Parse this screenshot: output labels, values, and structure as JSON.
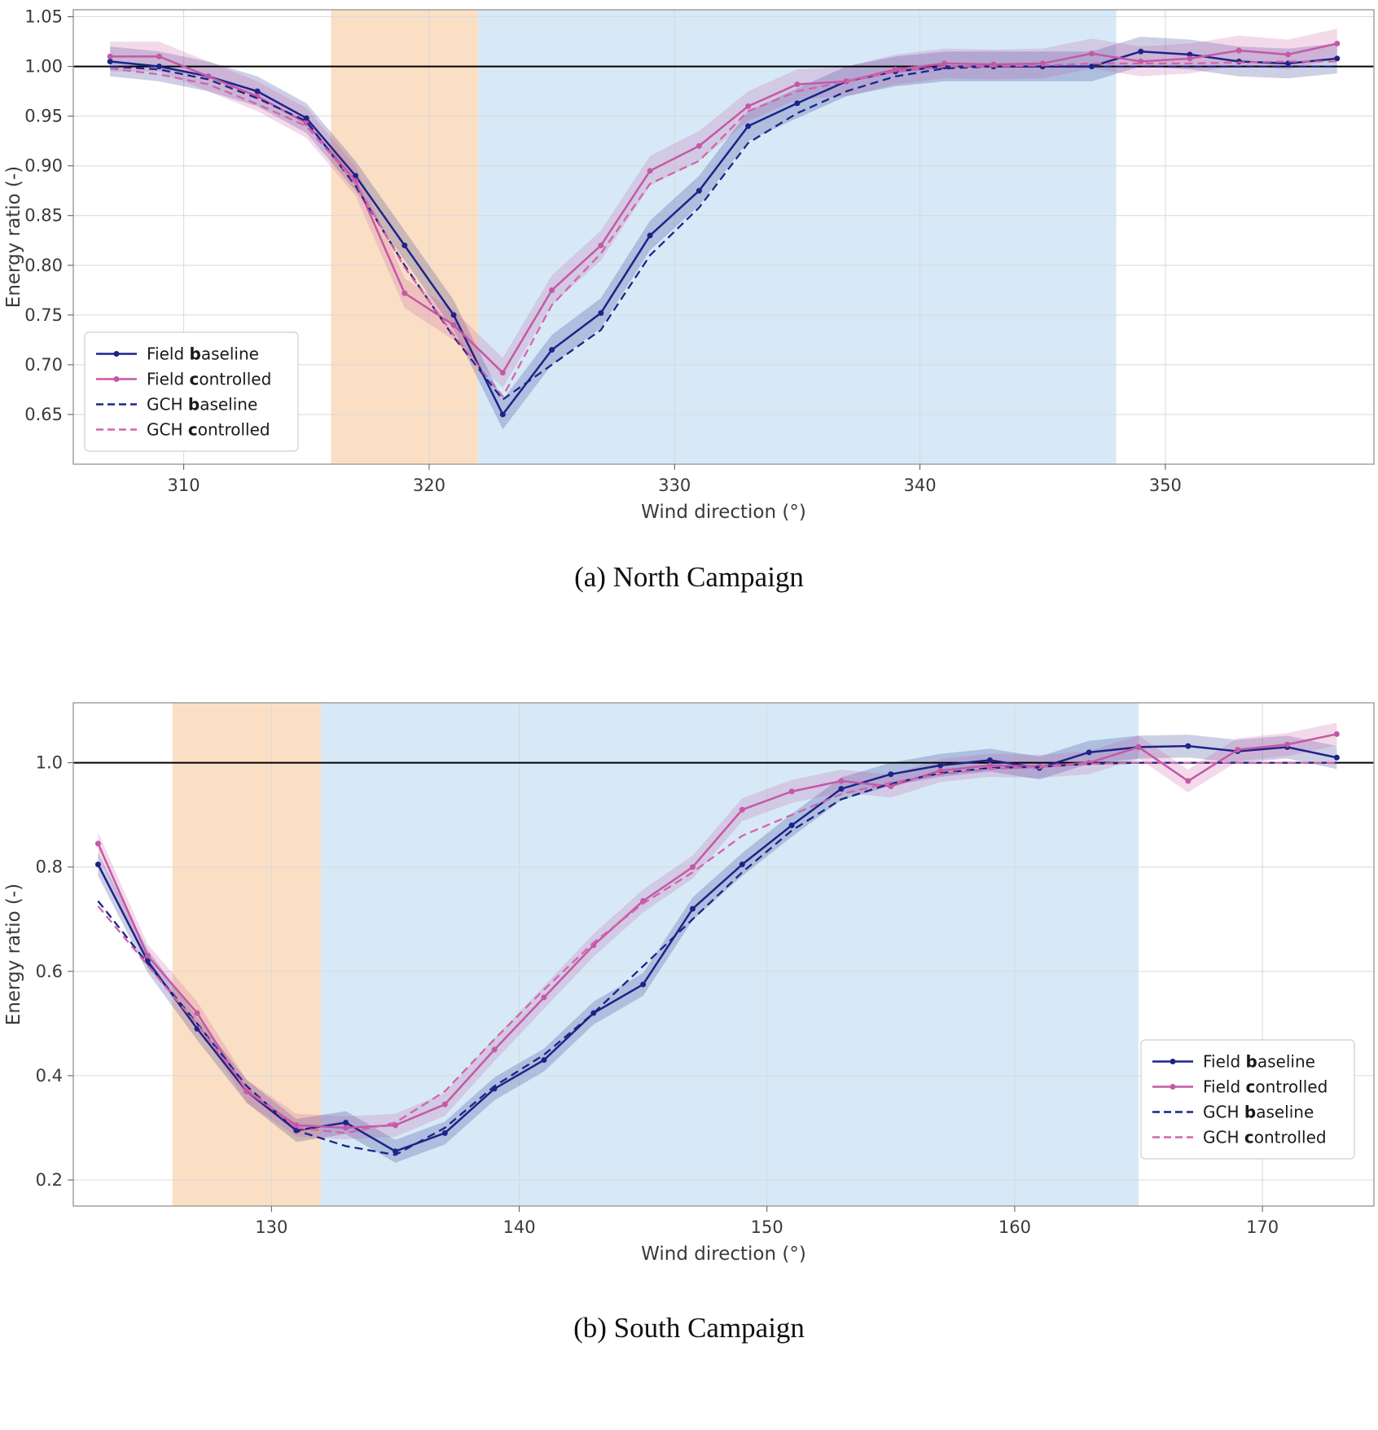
{
  "figure": {
    "background": "#ffffff",
    "grid_color": "#d9d9d9",
    "frame_color": "#9b9b9b",
    "ref_line_color": "#000000",
    "band_alpha": 0.22
  },
  "chart_data": [
    {
      "type": "line",
      "caption": "(a) North Campaign",
      "xlabel": "Wind direction (°)",
      "ylabel": "Energy ratio (-)",
      "xlim": [
        305.5,
        358.5
      ],
      "ylim": [
        0.6,
        1.057
      ],
      "xticks": [
        310,
        320,
        330,
        340,
        350
      ],
      "xtick_labels": [
        "310",
        "320",
        "330",
        "340",
        "350"
      ],
      "yticks": [
        0.65,
        0.7,
        0.75,
        0.8,
        0.85,
        0.9,
        0.95,
        1.0,
        1.05
      ],
      "ytick_labels": [
        "0.65",
        "0.70",
        "0.75",
        "0.80",
        "0.85",
        "0.90",
        "0.95",
        "1.00",
        "1.05"
      ],
      "ref_line_y": 1.0,
      "grid": true,
      "spans": [
        {
          "name": "controlled-sector",
          "x0": 316,
          "x1": 322,
          "color": "#fbdfc5"
        },
        {
          "name": "wake-sector",
          "x0": 322,
          "x1": 348,
          "color": "#d7e9f7"
        }
      ],
      "x": [
        307,
        309,
        311,
        313,
        315,
        317,
        319,
        321,
        323,
        325,
        327,
        329,
        331,
        333,
        335,
        337,
        339,
        341,
        343,
        345,
        347,
        349,
        351,
        353,
        355,
        357
      ],
      "series": [
        {
          "name": "Field baseline",
          "color": "#1c2488",
          "style": "solid",
          "markers": true,
          "band": 0.015,
          "values": [
            1.005,
            1.0,
            0.99,
            0.975,
            0.948,
            0.89,
            0.82,
            0.75,
            0.65,
            0.715,
            0.752,
            0.83,
            0.875,
            0.94,
            0.963,
            0.985,
            0.995,
            1.0,
            1.0,
            1.0,
            1.0,
            1.015,
            1.012,
            1.005,
            1.003,
            1.008
          ]
        },
        {
          "name": "Field controlled",
          "color": "#c558a6",
          "style": "solid",
          "markers": true,
          "band": 0.015,
          "values": [
            1.01,
            1.01,
            0.99,
            0.97,
            0.943,
            0.885,
            0.772,
            0.74,
            0.692,
            0.775,
            0.82,
            0.895,
            0.92,
            0.96,
            0.982,
            0.985,
            0.997,
            1.003,
            1.002,
            1.003,
            1.013,
            1.005,
            1.008,
            1.016,
            1.012,
            1.023
          ]
        },
        {
          "name": "GCH baseline",
          "color": "#1c2488",
          "style": "dashed",
          "markers": false,
          "band": 0,
          "values": [
            1.0,
            0.997,
            0.987,
            0.968,
            0.945,
            0.88,
            0.8,
            0.728,
            0.665,
            0.7,
            0.735,
            0.81,
            0.858,
            0.923,
            0.953,
            0.975,
            0.99,
            0.998,
            1.0,
            1.0,
            1.0,
            1.0,
            1.0,
            1.0,
            1.0,
            1.0
          ]
        },
        {
          "name": "GCH controlled",
          "color": "#d364ab",
          "style": "dashed",
          "markers": false,
          "band": 0,
          "values": [
            0.998,
            0.992,
            0.982,
            0.962,
            0.94,
            0.883,
            0.798,
            0.73,
            0.668,
            0.76,
            0.812,
            0.882,
            0.905,
            0.955,
            0.975,
            0.985,
            0.995,
            1.0,
            1.0,
            1.001,
            1.003,
            1.003,
            1.003,
            1.004,
            1.005,
            1.005
          ]
        }
      ],
      "legend": {
        "position": "lower left"
      }
    },
    {
      "type": "line",
      "caption": "(b) South Campaign",
      "xlabel": "Wind direction (°)",
      "ylabel": "Energy ratio (-)",
      "xlim": [
        122.0,
        174.5
      ],
      "ylim": [
        0.15,
        1.115
      ],
      "xticks": [
        130,
        140,
        150,
        160,
        170
      ],
      "xtick_labels": [
        "130",
        "140",
        "150",
        "160",
        "170"
      ],
      "yticks": [
        0.2,
        0.4,
        0.6,
        0.8,
        1.0
      ],
      "ytick_labels": [
        "0.2",
        "0.4",
        "0.6",
        "0.8",
        "1.0"
      ],
      "ref_line_y": 1.0,
      "grid": true,
      "spans": [
        {
          "name": "controlled-sector",
          "x0": 126,
          "x1": 132,
          "color": "#fbdfc5"
        },
        {
          "name": "wake-sector",
          "x0": 132,
          "x1": 165,
          "color": "#d7e9f7"
        }
      ],
      "x": [
        123,
        125,
        127,
        129,
        131,
        133,
        135,
        137,
        139,
        141,
        143,
        145,
        147,
        149,
        151,
        153,
        155,
        157,
        159,
        161,
        163,
        165,
        167,
        169,
        171,
        173
      ],
      "series": [
        {
          "name": "Field baseline",
          "color": "#1c2488",
          "style": "solid",
          "markers": true,
          "band": 0.022,
          "values": [
            0.805,
            0.62,
            0.49,
            0.37,
            0.295,
            0.31,
            0.255,
            0.29,
            0.375,
            0.43,
            0.52,
            0.575,
            0.72,
            0.805,
            0.88,
            0.95,
            0.978,
            0.995,
            1.005,
            0.99,
            1.02,
            1.03,
            1.032,
            1.022,
            1.03,
            1.01
          ]
        },
        {
          "name": "Field controlled",
          "color": "#c558a6",
          "style": "solid",
          "markers": true,
          "band": 0.022,
          "values": [
            0.845,
            0.63,
            0.52,
            0.37,
            0.305,
            0.3,
            0.305,
            0.345,
            0.45,
            0.55,
            0.65,
            0.735,
            0.8,
            0.91,
            0.945,
            0.965,
            0.955,
            0.985,
            0.995,
            0.993,
            1.0,
            1.03,
            0.965,
            1.025,
            1.035,
            1.055
          ]
        },
        {
          "name": "GCH baseline",
          "color": "#1c2488",
          "style": "dashed",
          "markers": false,
          "band": 0,
          "values": [
            0.735,
            0.615,
            0.5,
            0.38,
            0.295,
            0.265,
            0.248,
            0.3,
            0.38,
            0.44,
            0.52,
            0.61,
            0.7,
            0.79,
            0.87,
            0.93,
            0.96,
            0.98,
            0.99,
            0.992,
            0.998,
            1.0,
            1.0,
            1.0,
            1.0,
            1.0
          ]
        },
        {
          "name": "GCH controlled",
          "color": "#d364ab",
          "style": "dashed",
          "markers": false,
          "band": 0,
          "values": [
            0.725,
            0.612,
            0.498,
            0.375,
            0.3,
            0.29,
            0.31,
            0.37,
            0.47,
            0.565,
            0.655,
            0.73,
            0.79,
            0.86,
            0.9,
            0.94,
            0.962,
            0.978,
            0.988,
            0.992,
            0.998,
            1.0,
            1.0,
            1.0,
            1.0,
            1.0
          ]
        }
      ],
      "legend": {
        "position": "lower right"
      }
    }
  ]
}
